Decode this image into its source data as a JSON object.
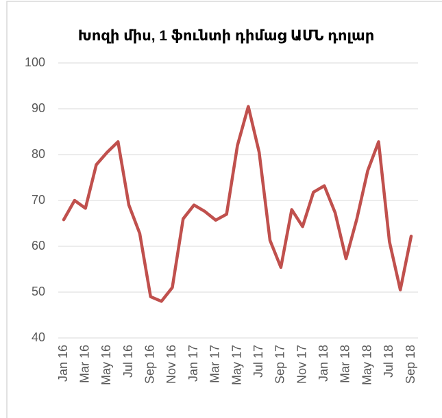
{
  "chart_data": {
    "type": "line",
    "title": "Խոզի միս, 1 ֆունտի դիմաց ԱՄՆ դոլար",
    "categories": [
      "Jan 16",
      null,
      "Mar 16",
      null,
      "May 16",
      null,
      "Jul 16",
      null,
      "Sep 16",
      null,
      "Nov 16",
      null,
      "Jan 17",
      null,
      "Mar 17",
      null,
      "May 17",
      null,
      "Jul 17",
      null,
      "Sep 17",
      null,
      "Nov 17",
      null,
      "Jan 18",
      null,
      "Mar 18",
      null,
      "May 18",
      null,
      "Jul 18",
      null,
      "Sep 18"
    ],
    "series": [
      {
        "color": "#c0504d",
        "values": [
          65.8,
          70,
          68.3,
          77.8,
          80.5,
          82.8,
          69,
          62.8,
          49,
          48,
          51,
          66,
          69,
          67.6,
          65.7,
          67,
          82,
          90.5,
          80.5,
          61.3,
          55.4,
          68,
          64.3,
          71.8,
          73.2,
          67.3,
          57.3,
          66,
          76.5,
          82.8,
          61,
          50.5,
          62.2
        ]
      }
    ],
    "ylim": [
      40,
      100
    ],
    "yticks": [
      40,
      50,
      60,
      70,
      80,
      90,
      100
    ],
    "grid": true
  }
}
